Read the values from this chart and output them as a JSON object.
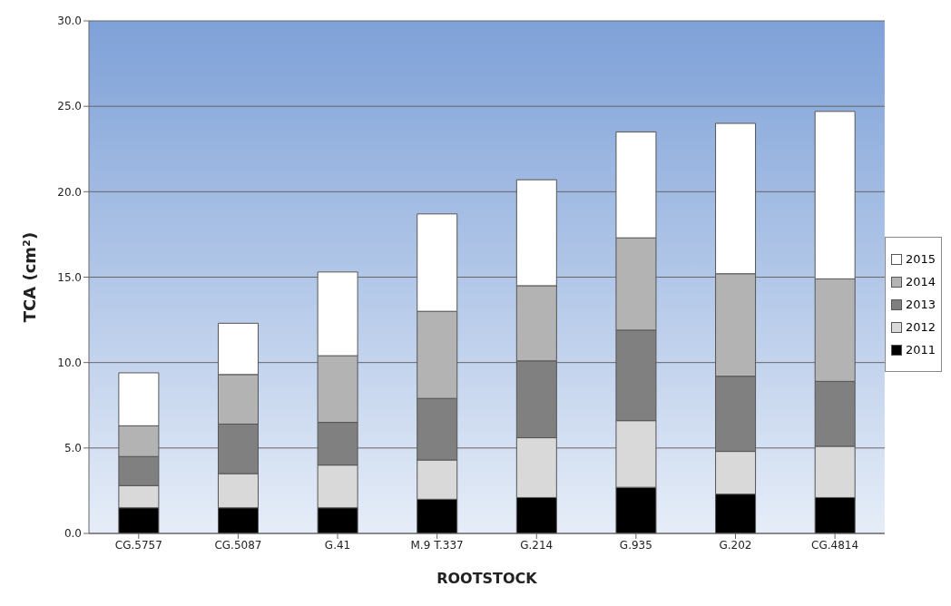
{
  "chart_data": {
    "type": "bar",
    "stacked": true,
    "xlabel": "ROOTSTOCK",
    "ylabel": "TCA (cm²)",
    "categories": [
      "CG.5757",
      "CG.5087",
      "G.41",
      "M.9 T.337",
      "G.214",
      "G.935",
      "G.202",
      "CG.4814"
    ],
    "series": [
      {
        "name": "2011",
        "color": "#000000",
        "values": [
          1.5,
          1.5,
          1.5,
          2.0,
          2.1,
          2.7,
          2.3,
          2.1
        ]
      },
      {
        "name": "2012",
        "color": "#d9d9d9",
        "values": [
          1.3,
          2.0,
          2.5,
          2.3,
          3.5,
          3.9,
          2.5,
          3.0
        ]
      },
      {
        "name": "2013",
        "color": "#808080",
        "values": [
          1.7,
          2.9,
          2.5,
          3.6,
          4.5,
          5.3,
          4.4,
          3.8
        ]
      },
      {
        "name": "2014",
        "color": "#b3b3b3",
        "values": [
          1.8,
          2.9,
          3.9,
          5.1,
          4.4,
          5.4,
          6.0,
          6.0
        ]
      },
      {
        "name": "2015",
        "color": "#ffffff",
        "values": [
          3.1,
          3.0,
          4.9,
          5.7,
          6.2,
          6.2,
          8.8,
          9.8
        ]
      }
    ],
    "ylim": [
      0,
      30
    ],
    "yticks": [
      {
        "value": 0,
        "label": "0.0"
      },
      {
        "value": 5,
        "label": "5.0"
      },
      {
        "value": 10,
        "label": "10.0"
      },
      {
        "value": 15,
        "label": "15.0"
      },
      {
        "value": 20,
        "label": "20.0"
      },
      {
        "value": 25,
        "label": "25.0"
      },
      {
        "value": 30,
        "label": "30.0"
      }
    ],
    "grid": "y",
    "legend": "right"
  }
}
